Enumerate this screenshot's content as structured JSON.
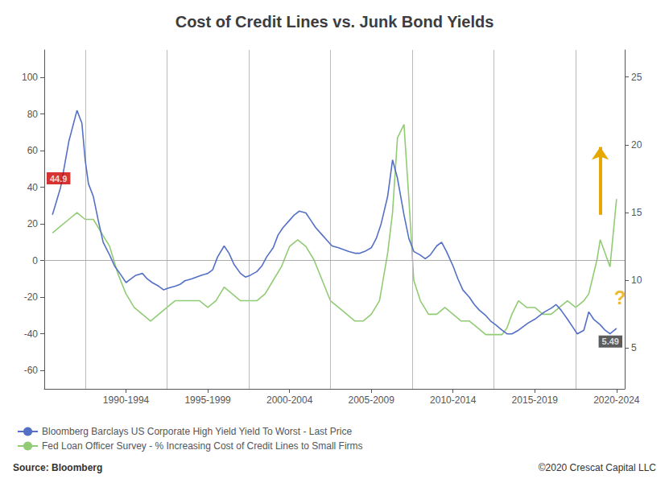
{
  "chart_data": {
    "type": "line",
    "title": "Cost of Credit Lines vs. Junk Bond Yields",
    "series": [
      {
        "name": "Bloomberg Barclays US Corporate High Yield Yield To Worst - Last Price",
        "x": [
          1987.5,
          1988.0,
          1988.5,
          1989.0,
          1989.3,
          1989.5,
          1989.7,
          1990.0,
          1990.3,
          1990.6,
          1991.0,
          1991.3,
          1991.7,
          1992.0,
          1992.3,
          1992.6,
          1993.0,
          1993.3,
          1993.6,
          1994.0,
          1994.3,
          1994.6,
          1995.0,
          1995.3,
          1995.6,
          1996.0,
          1996.3,
          1996.6,
          1997.0,
          1997.3,
          1997.6,
          1998.0,
          1998.3,
          1998.6,
          1999.0,
          1999.3,
          1999.6,
          2000.0,
          2000.3,
          2000.6,
          2001.0,
          2001.3,
          2001.6,
          2002.0,
          2002.3,
          2002.6,
          2003.0,
          2003.3,
          2003.6,
          2004.0,
          2004.3,
          2004.6,
          2005.0,
          2005.3,
          2005.6,
          2006.0,
          2006.3,
          2006.6,
          2007.0,
          2007.3,
          2007.6,
          2008.0,
          2008.3,
          2008.6,
          2009.0,
          2009.3,
          2009.6,
          2010.0,
          2010.3,
          2010.6,
          2011.0,
          2011.3,
          2011.6,
          2012.0,
          2012.3,
          2012.6,
          2013.0,
          2013.3,
          2013.6,
          2014.0,
          2014.3,
          2014.6,
          2015.0,
          2015.3,
          2015.6,
          2016.0,
          2016.3,
          2016.6,
          2017.0,
          2017.3,
          2017.6,
          2018.0,
          2018.3,
          2018.6,
          2019.0,
          2019.3,
          2019.6,
          2020.0,
          2020.3,
          2020.6,
          2021.0,
          2021.3,
          2021.6,
          2022.0
        ],
        "values": [
          25.0,
          40.0,
          65.0,
          82.0,
          75.0,
          55.0,
          42.0,
          35.0,
          22.0,
          10.0,
          3.0,
          -3.0,
          -8.0,
          -12.0,
          -10.0,
          -8.0,
          -7.0,
          -10.0,
          -12.0,
          -14.0,
          -16.0,
          -15.0,
          -14.0,
          -13.0,
          -11.0,
          -10.0,
          -9.0,
          -8.0,
          -7.0,
          -5.0,
          2.0,
          8.0,
          4.0,
          -2.0,
          -7.0,
          -9.0,
          -8.0,
          -6.0,
          -3.0,
          2.0,
          7.0,
          14.0,
          18.0,
          22.0,
          25.0,
          27.0,
          26.0,
          22.0,
          18.0,
          14.0,
          11.0,
          8.0,
          7.0,
          6.0,
          5.0,
          4.0,
          4.0,
          5.0,
          7.0,
          12.0,
          20.0,
          35.0,
          55.0,
          45.0,
          25.0,
          12.0,
          5.0,
          3.0,
          1.0,
          3.0,
          8.0,
          10.0,
          5.0,
          -3.0,
          -10.0,
          -16.0,
          -20.0,
          -24.0,
          -27.0,
          -30.0,
          -33.0,
          -35.0,
          -38.0,
          -40.0,
          -40.0,
          -38.0,
          -36.0,
          -34.0,
          -32.0,
          -30.0,
          -28.0,
          -26.0,
          -24.0,
          -27.0,
          -32.0,
          -36.0,
          -40.0,
          -38.0,
          -28.0,
          -32.0,
          -35.0,
          -38.0,
          -40.0,
          -37.0
        ]
      },
      {
        "name": "Fed Loan Officer Survey - % Increasing Cost of Credit Lines to Small Firms",
        "axis": "y2",
        "x": [
          1987.5,
          1988.0,
          1988.5,
          1989.0,
          1989.5,
          1990.0,
          1990.5,
          1991.0,
          1991.5,
          1992.0,
          1992.5,
          1993.0,
          1993.5,
          1994.0,
          1994.5,
          1995.0,
          1995.5,
          1996.0,
          1996.5,
          1997.0,
          1997.5,
          1998.0,
          1998.5,
          1999.0,
          1999.5,
          2000.0,
          2000.5,
          2001.0,
          2001.5,
          2002.0,
          2002.5,
          2003.0,
          2003.5,
          2004.0,
          2004.5,
          2005.0,
          2005.5,
          2006.0,
          2006.5,
          2007.0,
          2007.5,
          2008.0,
          2008.3,
          2008.6,
          2009.0,
          2009.3,
          2009.6,
          2010.0,
          2010.5,
          2011.0,
          2011.5,
          2012.0,
          2012.5,
          2013.0,
          2013.5,
          2014.0,
          2014.5,
          2015.0,
          2015.3,
          2015.6,
          2016.0,
          2016.5,
          2017.0,
          2017.5,
          2018.0,
          2018.5,
          2019.0,
          2019.5,
          2020.0,
          2020.3,
          2020.5,
          2020.8,
          2021.0,
          2021.3,
          2021.6,
          2022.0
        ],
        "values": [
          13.5,
          14.0,
          14.5,
          15.0,
          14.5,
          14.5,
          13.5,
          12.5,
          10.5,
          9.0,
          8.0,
          7.5,
          7.0,
          7.5,
          8.0,
          8.5,
          8.5,
          8.5,
          8.5,
          8.0,
          8.5,
          9.5,
          9.0,
          8.5,
          8.5,
          8.5,
          9.0,
          10.0,
          11.0,
          12.5,
          13.0,
          12.5,
          11.5,
          10.0,
          8.5,
          8.0,
          7.5,
          7.0,
          7.0,
          7.5,
          8.5,
          12.0,
          15.0,
          20.5,
          21.5,
          16.0,
          10.0,
          8.5,
          7.5,
          7.5,
          8.0,
          7.5,
          7.0,
          7.0,
          6.5,
          6.0,
          6.0,
          6.0,
          6.5,
          7.5,
          8.5,
          8.0,
          8.0,
          7.5,
          7.5,
          8.0,
          8.5,
          8.0,
          8.5,
          9.0,
          10.0,
          11.5,
          13.0,
          12.0,
          11.0,
          16.0
        ]
      }
    ],
    "xlim": [
      1987.0,
      2022.5
    ],
    "xticks": [
      {
        "value": 1992.0,
        "label": "1990-1994"
      },
      {
        "value": 1997.0,
        "label": "1995-1999"
      },
      {
        "value": 2002.0,
        "label": "2000-2004"
      },
      {
        "value": 2007.0,
        "label": "2005-2009"
      },
      {
        "value": 2012.0,
        "label": "2010-2014"
      },
      {
        "value": 2017.0,
        "label": "2015-2019"
      },
      {
        "value": 2022.0,
        "label": "2020-2024"
      }
    ],
    "ylim": [
      -70,
      115
    ],
    "yticks": [
      -60,
      -40,
      -20,
      0,
      20,
      40,
      60,
      80,
      100
    ],
    "y2lim": [
      2,
      27
    ],
    "y2ticks": [
      5,
      10,
      15,
      20,
      25
    ],
    "grid": false,
    "legend": "lower left",
    "vlines": [
      1989.5,
      1994.5,
      1999.5,
      2004.5,
      2009.5,
      2014.5,
      2019.5
    ],
    "hlines": [
      0
    ],
    "annotations": [
      {
        "text": "44.9",
        "y": 44.9,
        "axis": "y"
      },
      {
        "text": "5.49",
        "y": 5.49,
        "axis": "y2"
      },
      {
        "text": "?",
        "x": 2021.7,
        "y": -20
      }
    ],
    "arrows": [
      {
        "from": [
          2021.0,
          25
        ],
        "to": [
          2021.0,
          62
        ]
      }
    ],
    "source": "Source: Bloomberg",
    "copyright": "©2020 Crescat Capital LLC"
  }
}
